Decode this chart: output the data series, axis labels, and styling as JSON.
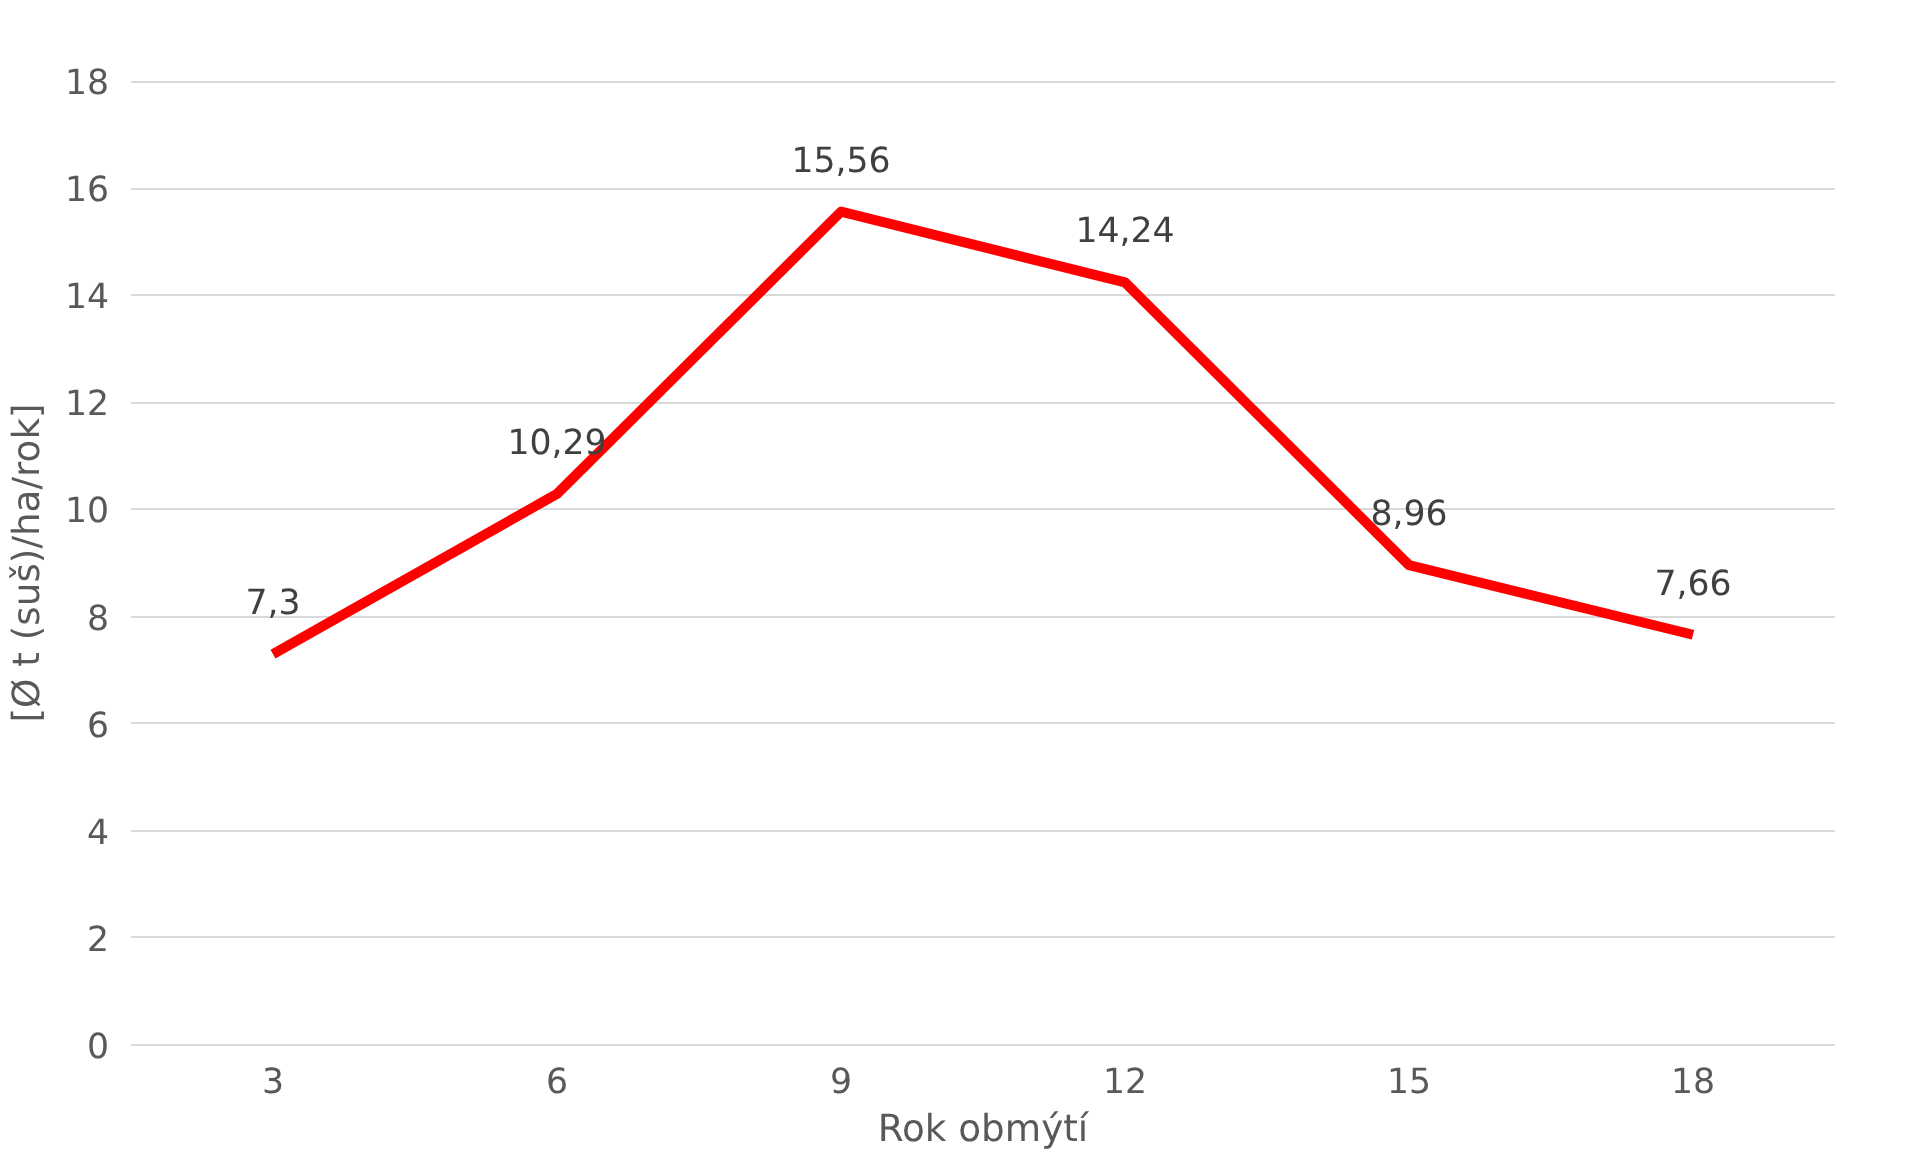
{
  "chart_data": {
    "type": "line",
    "xlabel": "Rok obmýtí",
    "ylabel": "[Ø t (suš)/ha/rok]",
    "categories": [
      "3",
      "6",
      "9",
      "12",
      "15",
      "18"
    ],
    "series": [
      {
        "color": "#ff0000",
        "values": [
          7.3,
          10.29,
          15.56,
          14.24,
          8.96,
          7.66
        ],
        "value_labels": [
          "7,3",
          "10,29",
          "15,56",
          "14,24",
          "8,96",
          "7,66"
        ]
      }
    ],
    "ylim": [
      0,
      18
    ],
    "yticks": [
      0,
      2,
      4,
      6,
      8,
      10,
      12,
      14,
      16,
      18
    ],
    "grid": "y",
    "marker": "none",
    "line_style": "solid"
  }
}
